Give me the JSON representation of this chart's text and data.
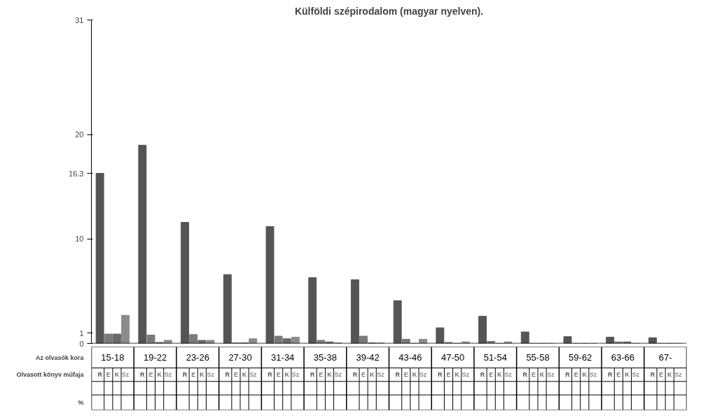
{
  "chart_data": {
    "type": "bar",
    "title": "Külföldi szépirodalom (magyar nyelven).",
    "categories": [
      "15-18",
      "19-22",
      "23-26",
      "27-30",
      "31-34",
      "35-38",
      "39-42",
      "43-46",
      "47-50",
      "51-54",
      "55-58",
      "59-62",
      "63-66",
      "67-"
    ],
    "series": [
      {
        "name": "R",
        "color": "#555555",
        "values": [
          16.3,
          19.0,
          11.6,
          6.6,
          11.2,
          6.3,
          6.1,
          4.1,
          1.5,
          2.6,
          1.1,
          0.65,
          0.6,
          0.55
        ]
      },
      {
        "name": "E",
        "color": "#7a7a7a",
        "values": [
          0.9,
          0.8,
          0.85,
          0.05,
          0.7,
          0.3,
          0.7,
          0.4,
          0.1,
          0.2,
          0,
          0,
          0.15,
          0
        ]
      },
      {
        "name": "K",
        "color": "#6a6a6a",
        "values": [
          0.9,
          0.1,
          0.3,
          0.05,
          0.45,
          0.15,
          0.05,
          0,
          0,
          0,
          0,
          0,
          0.15,
          0
        ]
      },
      {
        "name": "Sz",
        "color": "#8c8c8c",
        "values": [
          2.7,
          0.3,
          0.3,
          0.45,
          0.6,
          0.05,
          0.05,
          0.4,
          0.15,
          0.15,
          0,
          0,
          0,
          0
        ]
      }
    ],
    "ylim": [
      0,
      31
    ],
    "yticks": [
      0,
      1,
      10,
      16.3,
      20,
      31
    ],
    "grid": false,
    "annotations": [
      "Az olvasók kora",
      "Olvasott könyv műfaja",
      "%"
    ]
  }
}
